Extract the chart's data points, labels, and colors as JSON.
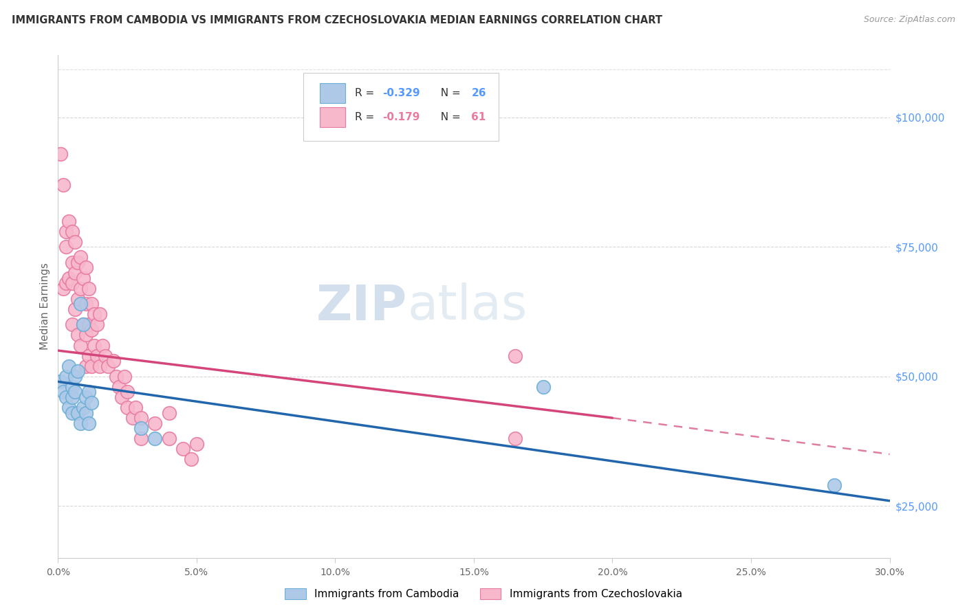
{
  "title": "IMMIGRANTS FROM CAMBODIA VS IMMIGRANTS FROM CZECHOSLOVAKIA MEDIAN EARNINGS CORRELATION CHART",
  "source": "Source: ZipAtlas.com",
  "ylabel": "Median Earnings",
  "xlim": [
    0.0,
    0.3
  ],
  "ylim": [
    15000,
    112000
  ],
  "yticks": [
    25000,
    50000,
    75000,
    100000
  ],
  "ytick_labels": [
    "$25,000",
    "$50,000",
    "$75,000",
    "$100,000"
  ],
  "watermark_zip": "ZIP",
  "watermark_atlas": "atlas",
  "blue_scatter_color": "#aec9e8",
  "blue_edge_color": "#6aaed6",
  "pink_scatter_color": "#f7b8cc",
  "pink_edge_color": "#e87aa0",
  "blue_line_color": "#2166ac",
  "pink_line_color": "#d4457a",
  "grid_color": "#cccccc",
  "right_axis_color": "#5599ff",
  "cambodia_x": [
    0.001,
    0.002,
    0.003,
    0.003,
    0.004,
    0.004,
    0.005,
    0.005,
    0.005,
    0.006,
    0.006,
    0.007,
    0.007,
    0.008,
    0.008,
    0.009,
    0.009,
    0.01,
    0.01,
    0.011,
    0.011,
    0.012,
    0.03,
    0.035,
    0.175,
    0.28
  ],
  "cambodia_y": [
    49000,
    47000,
    50000,
    46000,
    52000,
    44000,
    48000,
    46000,
    43000,
    50000,
    47000,
    51000,
    43000,
    64000,
    41000,
    60000,
    44000,
    46000,
    43000,
    47000,
    41000,
    45000,
    40000,
    38000,
    48000,
    29000
  ],
  "czechoslovakia_x": [
    0.001,
    0.002,
    0.002,
    0.003,
    0.003,
    0.003,
    0.004,
    0.004,
    0.005,
    0.005,
    0.005,
    0.005,
    0.006,
    0.006,
    0.006,
    0.007,
    0.007,
    0.007,
    0.008,
    0.008,
    0.008,
    0.009,
    0.009,
    0.01,
    0.01,
    0.01,
    0.01,
    0.011,
    0.011,
    0.011,
    0.012,
    0.012,
    0.012,
    0.013,
    0.013,
    0.014,
    0.014,
    0.015,
    0.015,
    0.016,
    0.017,
    0.018,
    0.02,
    0.021,
    0.022,
    0.023,
    0.024,
    0.025,
    0.025,
    0.027,
    0.028,
    0.03,
    0.03,
    0.035,
    0.04,
    0.04,
    0.045,
    0.048,
    0.05,
    0.165,
    0.165
  ],
  "czechoslovakia_y": [
    93000,
    87000,
    67000,
    78000,
    75000,
    68000,
    80000,
    69000,
    78000,
    72000,
    68000,
    60000,
    76000,
    70000,
    63000,
    72000,
    65000,
    58000,
    73000,
    67000,
    56000,
    69000,
    60000,
    71000,
    64000,
    58000,
    52000,
    67000,
    60000,
    54000,
    64000,
    59000,
    52000,
    62000,
    56000,
    60000,
    54000,
    62000,
    52000,
    56000,
    54000,
    52000,
    53000,
    50000,
    48000,
    46000,
    50000,
    47000,
    44000,
    42000,
    44000,
    42000,
    38000,
    41000,
    38000,
    43000,
    36000,
    34000,
    37000,
    54000,
    38000
  ],
  "blue_line_x0": 0.0,
  "blue_line_x1": 0.3,
  "blue_line_y0": 49000,
  "blue_line_y1": 26000,
  "pink_line_x0": 0.0,
  "pink_line_x1_solid": 0.2,
  "pink_line_x1_dash": 0.3,
  "pink_line_y0": 55000,
  "pink_line_y1_solid": 42000,
  "pink_line_y1_dash": 35000,
  "xtick_positions": [
    0.0,
    0.05,
    0.1,
    0.15,
    0.2,
    0.25,
    0.3
  ],
  "xtick_labels": [
    "0.0%",
    "5.0%",
    "10.0%",
    "15.0%",
    "20.0%",
    "25.0%",
    "30.0%"
  ]
}
